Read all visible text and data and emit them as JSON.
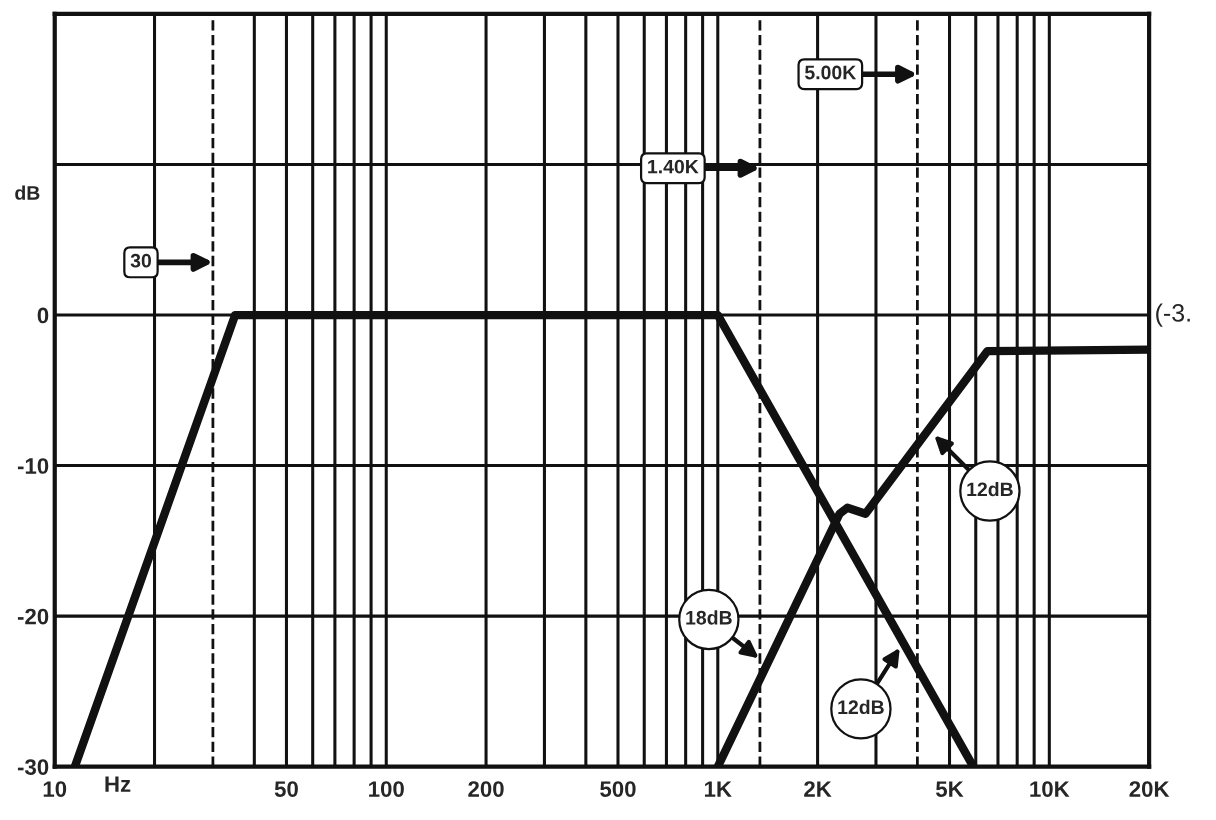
{
  "chart_data": {
    "type": "line",
    "xlabel": "Hz",
    "ylabel": "dB",
    "log": "x",
    "xlim": [
      10,
      20000
    ],
    "ylim": [
      -30,
      20
    ],
    "xticks": [
      10,
      {
        "value": 20,
        "label": null
      },
      {
        "value": 40,
        "label": null
      },
      50,
      {
        "value": 60,
        "label": null
      },
      {
        "value": 70,
        "label": null
      },
      {
        "value": 80,
        "label": null
      },
      {
        "value": 90,
        "label": null
      },
      100,
      200,
      {
        "value": 300,
        "label": null
      },
      {
        "value": 400,
        "label": null
      },
      500,
      {
        "value": 600,
        "label": null
      },
      {
        "value": 700,
        "label": null
      },
      {
        "value": 800,
        "label": null
      },
      {
        "value": 900,
        "label": null
      },
      {
        "value": 1000,
        "label": "1K"
      },
      {
        "value": 2000,
        "label": "2K"
      },
      {
        "value": 3000,
        "label": null
      },
      {
        "value": 5000,
        "label": "5K"
      },
      {
        "value": 6000,
        "label": null
      },
      {
        "value": 7000,
        "label": null
      },
      {
        "value": 8000,
        "label": null
      },
      {
        "value": 9000,
        "label": null
      },
      {
        "value": 10000,
        "label": "10K"
      },
      {
        "value": 20000,
        "label": "20K"
      }
    ],
    "yticks": [
      -30,
      -20,
      -10,
      0,
      {
        "value": 10,
        "label": null
      },
      {
        "value": 20,
        "label": null
      }
    ],
    "grid": true,
    "marker": "none",
    "line_style": "solid",
    "series": [
      {
        "color": "#111111",
        "x": [
          11.5,
          35,
          1000,
          5900
        ],
        "values": [
          -30,
          0,
          0,
          -30
        ]
      },
      {
        "color": "#111111",
        "x": [
          1000,
          2330,
          2460,
          2790,
          6500,
          20000
        ],
        "values": [
          -30,
          -13.2,
          -12.8,
          -13.2,
          -2.4,
          -2.3
        ]
      }
    ],
    "ref_lines": [
      {
        "axis": "x",
        "value": 30,
        "label": "30",
        "line_style": "dashed"
      },
      {
        "axis": "x",
        "value": 1340,
        "label": "1.40K",
        "line_style": "dashed"
      },
      {
        "axis": "x",
        "value": 4000,
        "label": "5.00K",
        "line_style": "dashed"
      }
    ],
    "annotations": [
      {
        "text": "18dB",
        "x": 1330,
        "y": -22.8
      },
      {
        "text": "12dB",
        "x": 3540,
        "y": -22.1
      },
      {
        "text": "12dB",
        "x": 4500,
        "y": -8
      },
      "(-3."
    ]
  }
}
